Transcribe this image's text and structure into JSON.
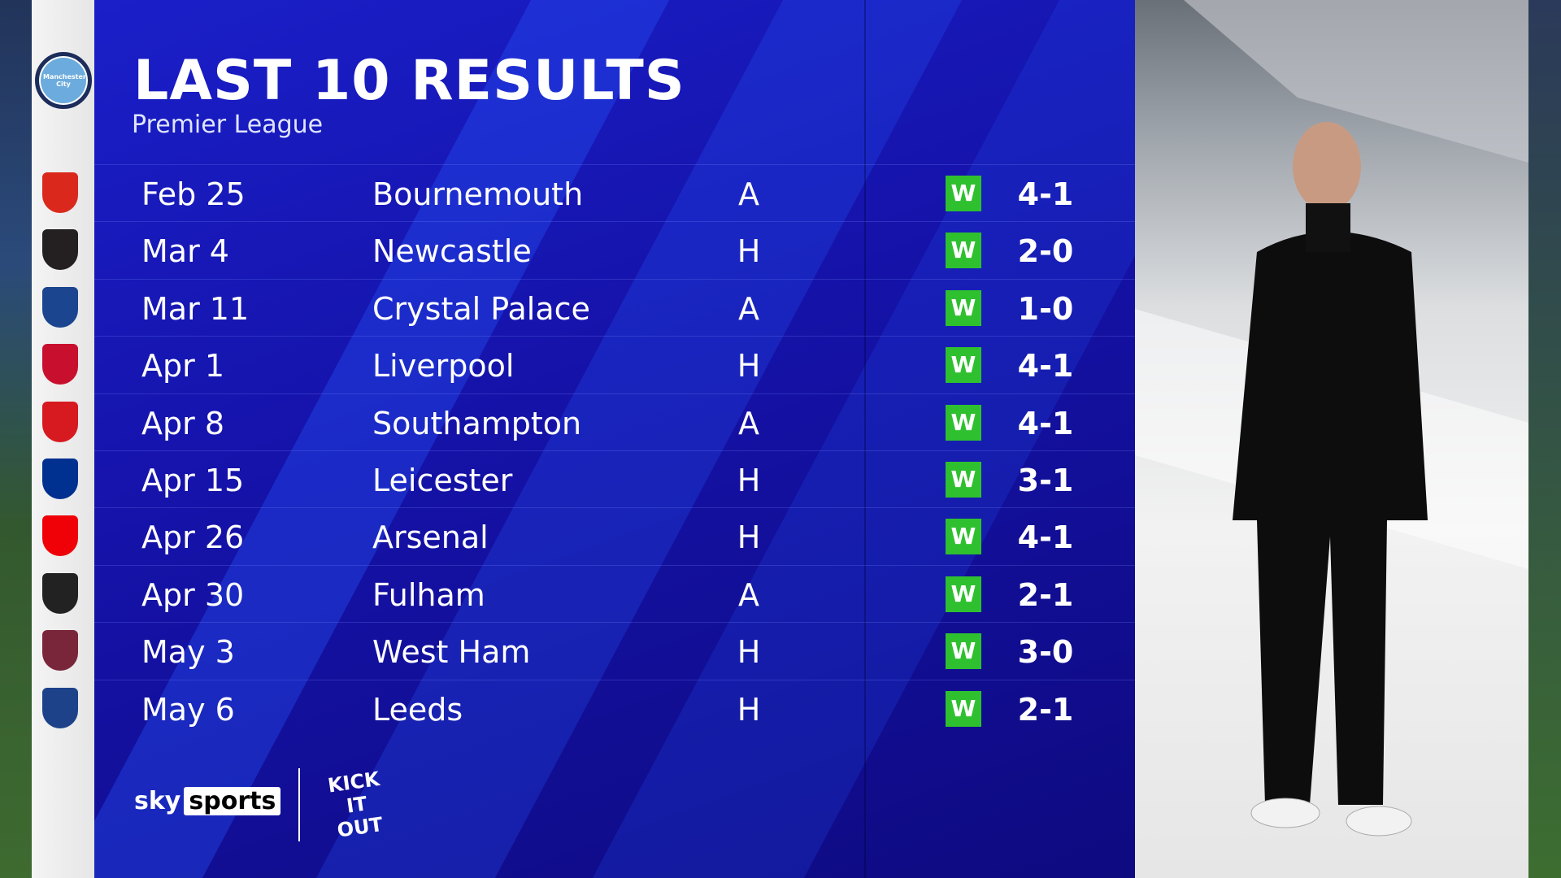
{
  "header": {
    "title": "LAST 10 RESULTS",
    "subtitle": "Premier League"
  },
  "team": "Manchester City",
  "results": [
    {
      "date": "Feb 25",
      "opponent": "Bournemouth",
      "venue": "A",
      "result": "W",
      "score": "4-1",
      "crest_color": "#da291c"
    },
    {
      "date": "Mar 4",
      "opponent": "Newcastle",
      "venue": "H",
      "result": "W",
      "score": "2-0",
      "crest_color": "#241f20"
    },
    {
      "date": "Mar 11",
      "opponent": "Crystal Palace",
      "venue": "A",
      "result": "W",
      "score": "1-0",
      "crest_color": "#1b458f"
    },
    {
      "date": "Apr 1",
      "opponent": "Liverpool",
      "venue": "H",
      "result": "W",
      "score": "4-1",
      "crest_color": "#c8102e"
    },
    {
      "date": "Apr 8",
      "opponent": "Southampton",
      "venue": "A",
      "result": "W",
      "score": "4-1",
      "crest_color": "#d71920"
    },
    {
      "date": "Apr 15",
      "opponent": "Leicester",
      "venue": "H",
      "result": "W",
      "score": "3-1",
      "crest_color": "#003090"
    },
    {
      "date": "Apr 26",
      "opponent": "Arsenal",
      "venue": "H",
      "result": "W",
      "score": "4-1",
      "crest_color": "#ef0107"
    },
    {
      "date": "Apr 30",
      "opponent": "Fulham",
      "venue": "A",
      "result": "W",
      "score": "2-1",
      "crest_color": "#222222"
    },
    {
      "date": "May 3",
      "opponent": "West Ham",
      "venue": "H",
      "result": "W",
      "score": "3-0",
      "crest_color": "#7a263a"
    },
    {
      "date": "May 6",
      "opponent": "Leeds",
      "venue": "H",
      "result": "W",
      "score": "2-1",
      "crest_color": "#1d428a"
    }
  ],
  "colors": {
    "panel": "#1512a8",
    "win": "#2fc02f"
  },
  "branding": {
    "broadcaster": "sky",
    "broadcaster_box": "sports",
    "campaign": "KICK IT OUT"
  }
}
